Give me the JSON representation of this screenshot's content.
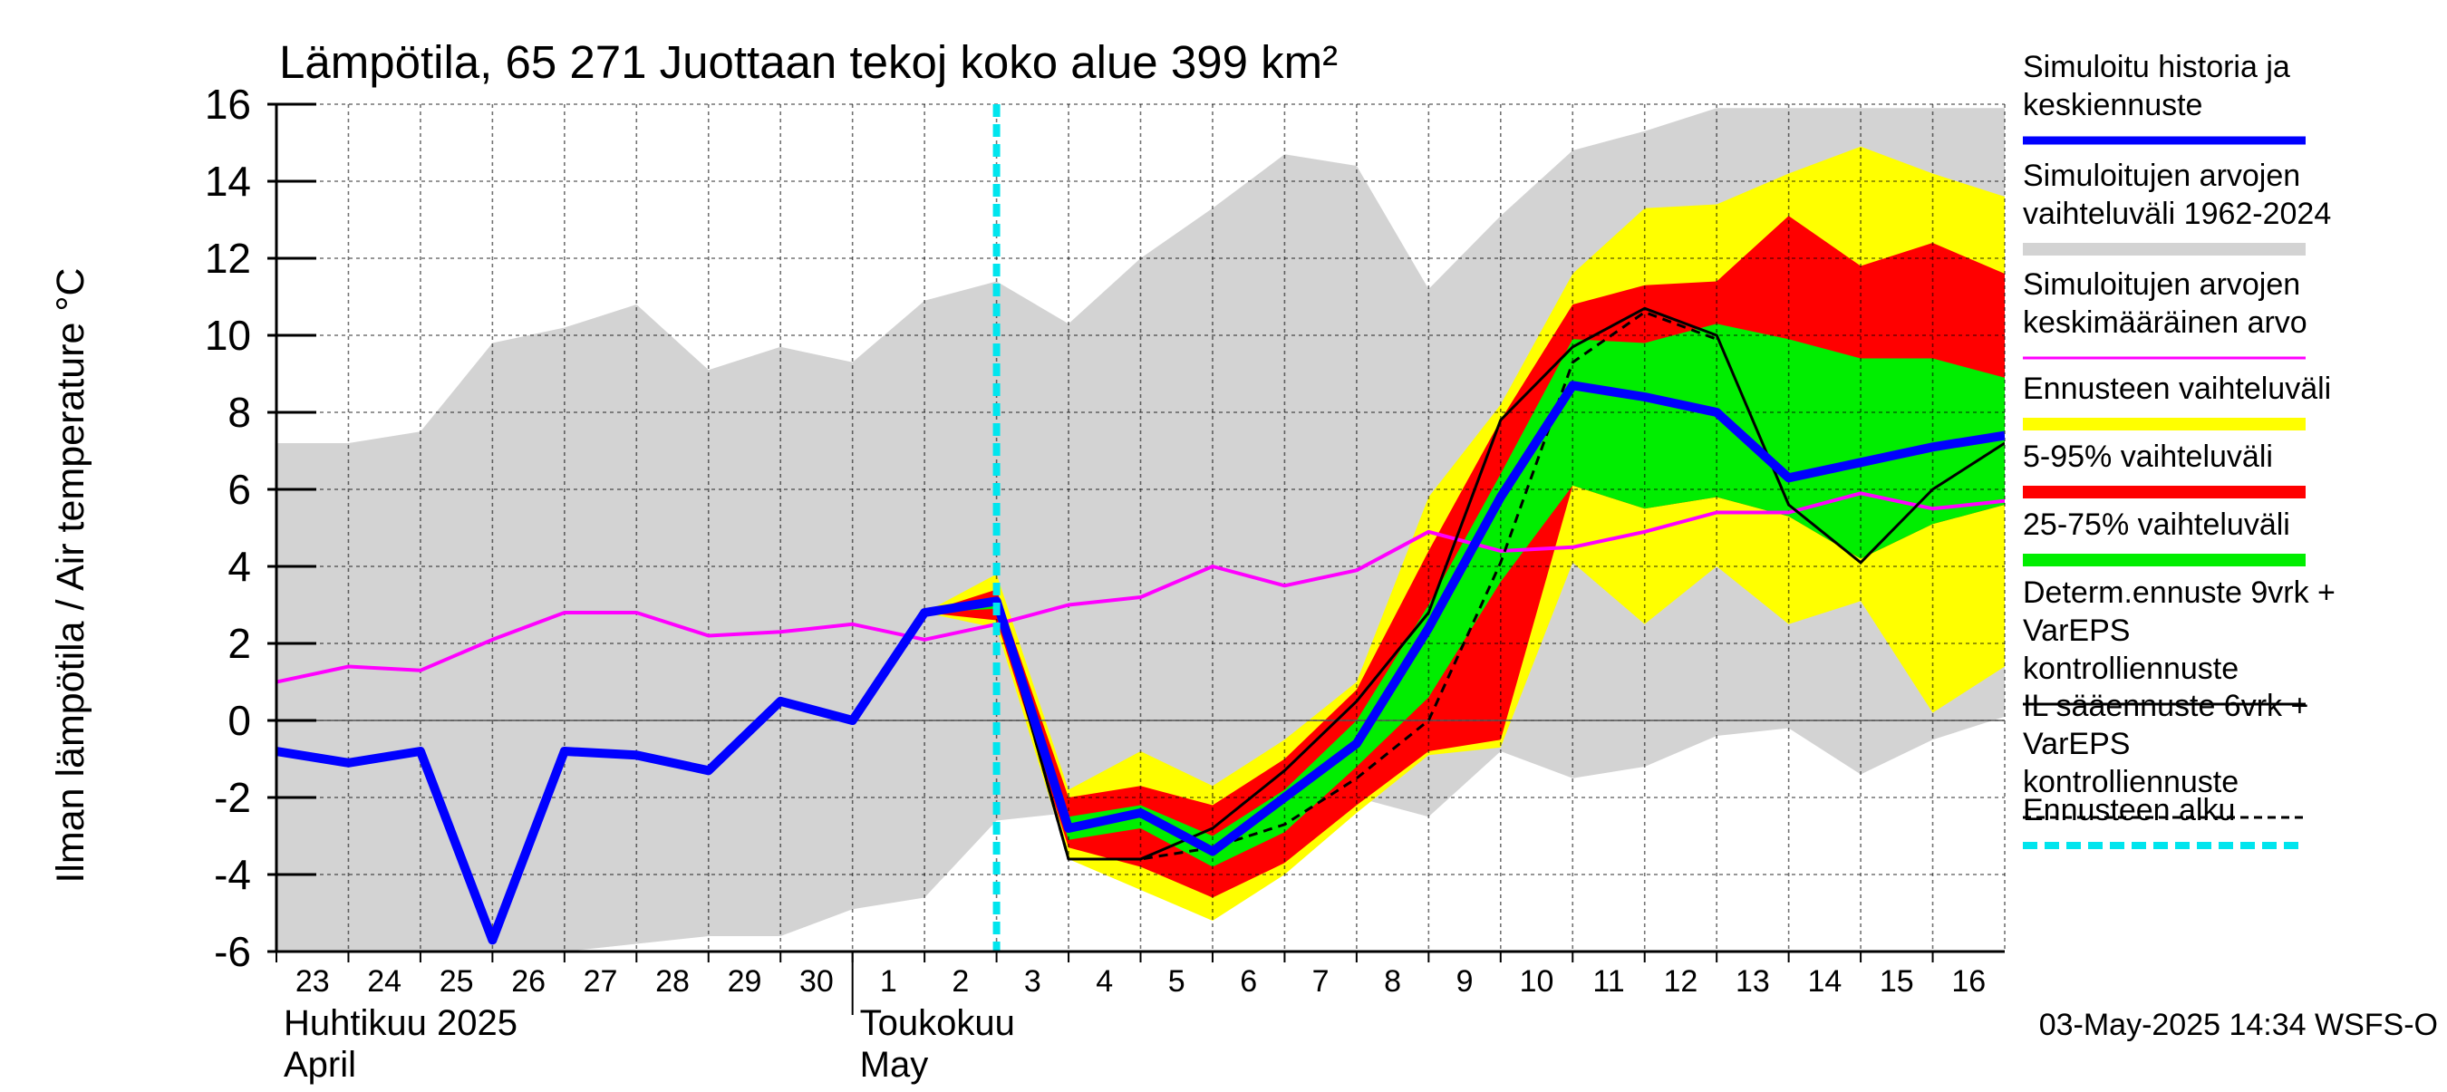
{
  "chart_data": {
    "type": "line",
    "title": "Lämpötila, 65 271 Juottaan tekoj koko alue 399 km²",
    "ylabel": "Ilman lämpötila / Air temperature   °C",
    "ylim": [
      -6,
      16
    ],
    "yticks": [
      -6,
      -4,
      -2,
      0,
      2,
      4,
      6,
      8,
      10,
      12,
      14,
      16
    ],
    "xlim": [
      0,
      24
    ],
    "x_tick_labels": [
      "23",
      "24",
      "25",
      "26",
      "27",
      "28",
      "29",
      "30",
      "1",
      "2",
      "3",
      "4",
      "5",
      "6",
      "7",
      "8",
      "9",
      "10",
      "11",
      "12",
      "13",
      "14",
      "15",
      "16"
    ],
    "month_labels": [
      {
        "line1": "Huhtikuu  2025",
        "line2": "April",
        "start_day_index": 0
      },
      {
        "line1": "Toukokuu",
        "line2": "May",
        "start_day_index": 8
      }
    ],
    "grid": true,
    "forecast_start_x": 10.0,
    "timestamp": "03-May-2025 14:34 WSFS-O",
    "legend": {
      "placement": "right",
      "entries": [
        {
          "label": "Simuloitu historia ja keskiennuste",
          "color": "#0000ff",
          "style": "thick"
        },
        {
          "label": "Simuloitujen arvojen vaihteluväli 1962-2024",
          "color": "#d3d3d3",
          "style": "band"
        },
        {
          "label": "Simuloitujen arvojen keskimääräinen arvo",
          "color": "#ff00ff",
          "style": "line"
        },
        {
          "label": "Ennusteen vaihteluväli",
          "color": "#ffff00",
          "style": "band"
        },
        {
          "label": "5-95% vaihteluväli",
          "color": "#ff0000",
          "style": "band"
        },
        {
          "label": "25-75% vaihteluväli",
          "color": "#00ee00",
          "style": "band"
        },
        {
          "label": "Determ.ennuste 9vrk + VarEPS kontrolliennuste",
          "color": "#000000",
          "style": "line"
        },
        {
          "label": "IL sääennuste 6vrk  +  VarEPS kontrolliennuste",
          "color": "#000000",
          "style": "dashed"
        },
        {
          "label": "Ennusteen alku",
          "color": "#00e5ee",
          "style": "dashed-thick"
        }
      ]
    },
    "series": [
      {
        "key": "hist_range",
        "type": "band",
        "x": [
          0,
          1,
          2,
          3,
          4,
          5,
          6,
          7,
          8,
          9,
          10,
          11,
          12,
          13,
          14,
          15,
          16,
          17,
          18,
          19,
          20,
          21,
          22,
          23,
          24
        ],
        "upper": [
          7.2,
          7.2,
          7.5,
          9.8,
          10.2,
          10.8,
          9.1,
          9.7,
          9.3,
          10.9,
          11.4,
          10.3,
          12.0,
          13.3,
          14.7,
          14.4,
          11.2,
          13.1,
          14.8,
          15.3,
          15.9,
          15.9,
          15.9,
          15.9,
          15.9
        ],
        "lower": [
          -6,
          -6,
          -6,
          -6,
          -6,
          -5.8,
          -5.6,
          -5.6,
          -4.9,
          -4.6,
          -2.6,
          -2.4,
          -2.6,
          -2.5,
          -2.2,
          -2.0,
          -2.5,
          -0.8,
          -1.5,
          -1.2,
          -0.4,
          -0.2,
          -1.4,
          -0.5,
          0.1
        ]
      },
      {
        "key": "forecast_range",
        "type": "band",
        "x": [
          9,
          10,
          11,
          12,
          13,
          14,
          15,
          16,
          17,
          18,
          19,
          20,
          21,
          22,
          23,
          24
        ],
        "upper": [
          2.8,
          3.8,
          -1.8,
          -0.8,
          -1.7,
          -0.5,
          1.0,
          5.8,
          8.2,
          11.6,
          13.3,
          13.4,
          14.2,
          14.9,
          14.2,
          13.6
        ],
        "lower": [
          2.8,
          2.4,
          -3.6,
          -4.4,
          -5.2,
          -4.0,
          -2.4,
          -0.9,
          -0.7,
          4.1,
          2.5,
          4.0,
          2.5,
          3.1,
          0.2,
          1.4
        ]
      },
      {
        "key": "p5_95",
        "type": "band",
        "x": [
          9,
          10,
          11,
          12,
          13,
          14,
          15,
          16,
          17,
          18,
          19,
          20,
          21,
          22,
          23,
          24
        ],
        "upper": [
          2.8,
          3.4,
          -2.0,
          -1.7,
          -2.2,
          -1.0,
          0.8,
          4.4,
          7.8,
          10.8,
          11.3,
          11.4,
          13.1,
          11.8,
          12.4,
          11.6
        ],
        "lower": [
          2.8,
          2.6,
          -3.3,
          -3.8,
          -4.6,
          -3.7,
          -2.2,
          -0.8,
          -0.5,
          6.1,
          5.5,
          5.8,
          5.3,
          4.2,
          5.1,
          5.6
        ]
      },
      {
        "key": "p25_75",
        "type": "band",
        "x": [
          9,
          10,
          11,
          12,
          13,
          14,
          15,
          16,
          17,
          18,
          19,
          20,
          21,
          22,
          23,
          24
        ],
        "upper": [
          2.8,
          3.2,
          -2.5,
          -2.2,
          -3.0,
          -1.8,
          0.0,
          3.0,
          6.4,
          9.9,
          9.8,
          10.3,
          9.9,
          9.4,
          9.4,
          8.9
        ],
        "lower": [
          2.8,
          2.9,
          -3.1,
          -2.8,
          -3.8,
          -2.9,
          -1.2,
          0.6,
          3.6,
          6.1,
          5.5,
          5.8,
          5.3,
          4.2,
          5.1,
          5.6
        ]
      },
      {
        "key": "mean",
        "type": "line",
        "color": "#ff00ff",
        "x": [
          0,
          1,
          2,
          3,
          4,
          5,
          6,
          7,
          8,
          9,
          10,
          11,
          12,
          13,
          14,
          15,
          16,
          17,
          18,
          19,
          20,
          21,
          22,
          23,
          24
        ],
        "values": [
          1.0,
          1.4,
          1.3,
          2.1,
          2.8,
          2.8,
          2.2,
          2.3,
          2.5,
          2.1,
          2.5,
          3.0,
          3.2,
          4.0,
          3.5,
          3.9,
          4.9,
          4.4,
          4.5,
          4.9,
          5.4,
          5.4,
          5.9,
          5.5,
          5.7
        ]
      },
      {
        "key": "il_forecast",
        "type": "line",
        "color": "#000000",
        "dashed": true,
        "x": [
          9,
          10,
          11,
          12,
          13,
          14,
          15,
          16,
          17,
          18,
          19,
          20
        ],
        "values": [
          2.8,
          3.1,
          -3.6,
          -3.6,
          -3.3,
          -2.7,
          -1.5,
          0.0,
          4.1,
          9.3,
          10.6,
          9.9
        ]
      },
      {
        "key": "determ_forecast",
        "type": "line",
        "color": "#000000",
        "x": [
          9,
          10,
          11,
          12,
          13,
          14,
          15,
          16,
          17,
          18,
          19,
          20,
          21,
          22,
          23,
          24
        ],
        "values": [
          2.8,
          3.1,
          -3.6,
          -3.6,
          -2.8,
          -1.3,
          0.5,
          2.8,
          7.8,
          9.7,
          10.7,
          10.0,
          5.6,
          4.1,
          6.0,
          7.2
        ]
      },
      {
        "key": "main",
        "type": "line",
        "color": "#0000ff",
        "x": [
          0,
          1,
          2,
          3,
          4,
          5,
          6,
          7,
          8,
          9,
          10,
          11,
          12,
          13,
          14,
          15,
          16,
          17,
          18,
          19,
          20,
          21,
          22,
          23,
          24
        ],
        "values": [
          -0.8,
          -1.1,
          -0.8,
          -5.7,
          -0.8,
          -0.9,
          -1.3,
          0.5,
          0.0,
          2.8,
          3.1,
          -2.8,
          -2.4,
          -3.4,
          -2.0,
          -0.6,
          2.4,
          5.8,
          8.7,
          8.4,
          8.0,
          6.3,
          6.7,
          7.1,
          7.4
        ]
      }
    ]
  }
}
